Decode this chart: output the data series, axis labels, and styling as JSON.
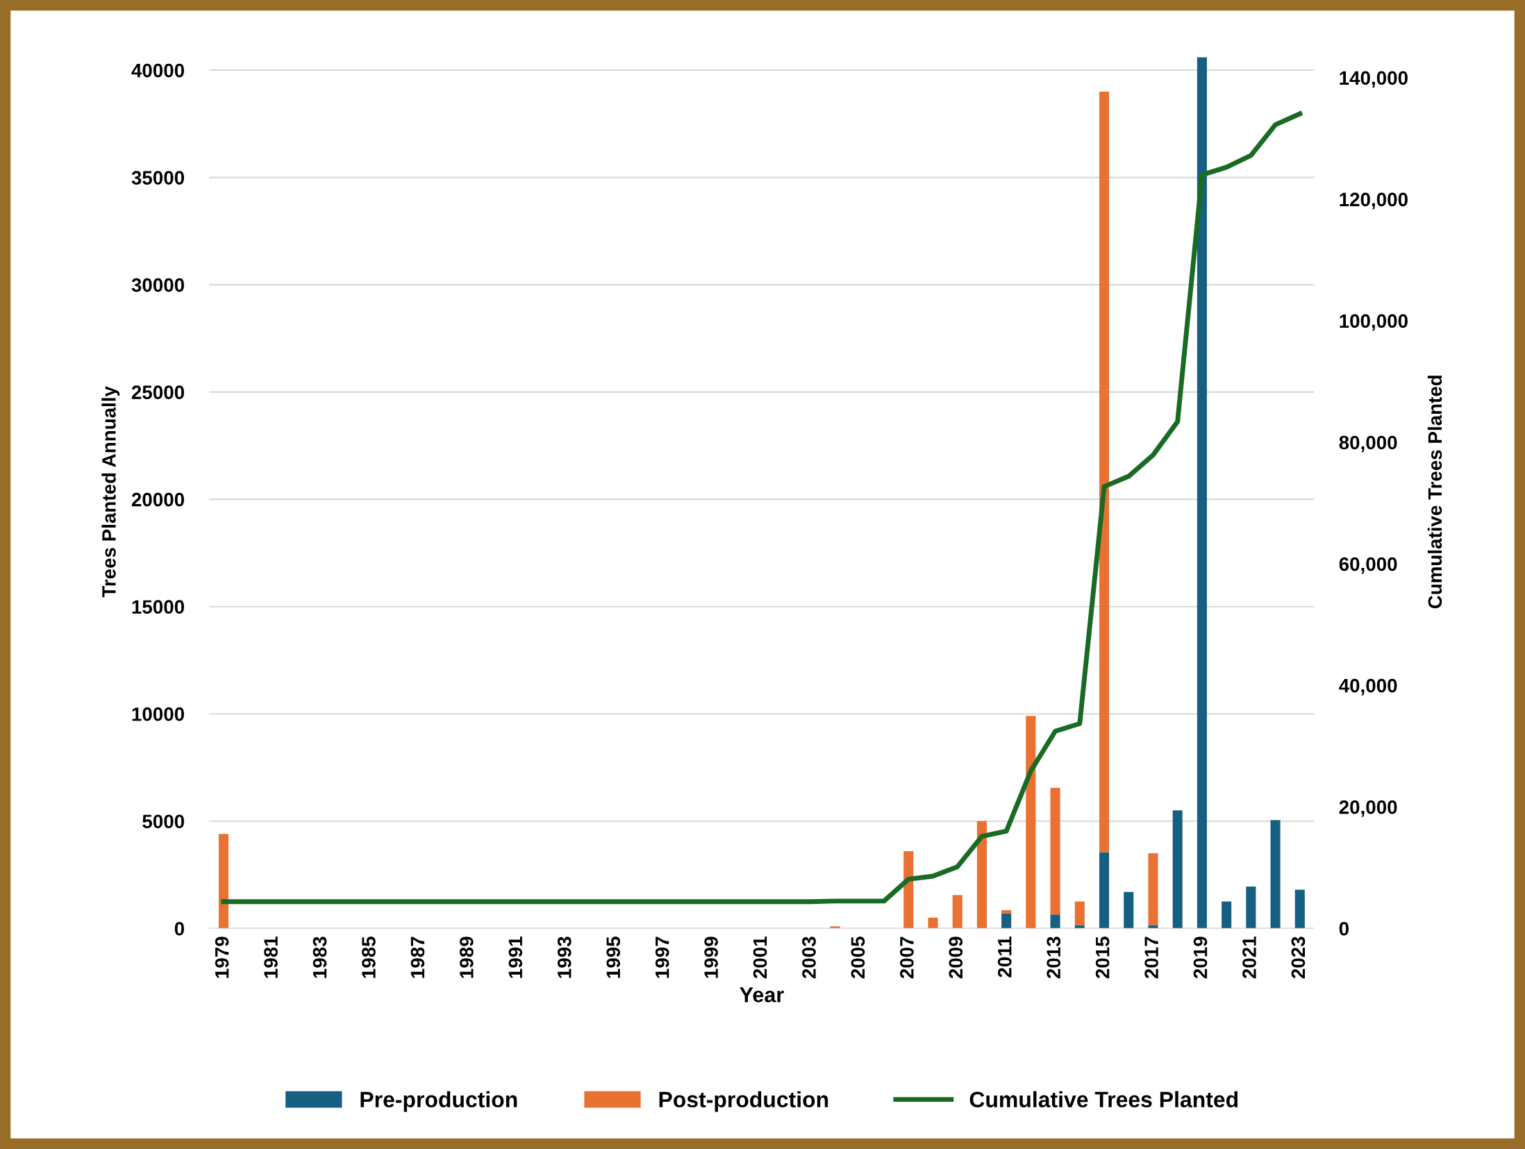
{
  "chart_data": {
    "type": "bar",
    "stacked": true,
    "xlabel": "Year",
    "ylabel": "Trees Planted Annually",
    "y2label": "Cumulative Trees Planted",
    "categories": [
      "1979",
      null,
      "1981",
      null,
      "1983",
      null,
      "1985",
      null,
      "1987",
      null,
      "1989",
      null,
      "1991",
      null,
      "1993",
      null,
      "1995",
      null,
      "1997",
      null,
      "1999",
      null,
      "2001",
      null,
      "2003",
      null,
      "2005",
      null,
      "2007",
      null,
      "2009",
      null,
      "2011",
      null,
      "2013",
      null,
      "2015",
      null,
      "2017",
      null,
      "2019",
      null,
      "2021",
      null,
      "2023"
    ],
    "series": [
      {
        "name": "Pre-production",
        "color": "#156082",
        "values": [
          0,
          0,
          0,
          0,
          0,
          0,
          0,
          0,
          0,
          0,
          0,
          0,
          0,
          0,
          0,
          0,
          0,
          0,
          0,
          0,
          0,
          0,
          0,
          0,
          0,
          0,
          0,
          0,
          0,
          0,
          0,
          0,
          700,
          0,
          650,
          150,
          3550,
          1700,
          150,
          5500,
          40600,
          1250,
          1950,
          5050,
          1800
        ]
      },
      {
        "name": "Post-production",
        "color": "#e97132",
        "values": [
          4400,
          0,
          0,
          0,
          0,
          0,
          0,
          0,
          0,
          0,
          0,
          0,
          0,
          0,
          0,
          0,
          0,
          0,
          0,
          0,
          0,
          0,
          0,
          0,
          0,
          100,
          0,
          0,
          3600,
          500,
          1550,
          5000,
          150,
          9900,
          5900,
          1100,
          35450,
          0,
          3350,
          0,
          0,
          0,
          0,
          0,
          0
        ]
      },
      {
        "name": "Cumulative Trees Planted",
        "type": "line",
        "axis": "y2",
        "color": "#196b24",
        "values": [
          4400,
          4400,
          4400,
          4400,
          4400,
          4400,
          4400,
          4400,
          4400,
          4400,
          4400,
          4400,
          4400,
          4400,
          4400,
          4400,
          4400,
          4400,
          4400,
          4400,
          4400,
          4400,
          4400,
          4400,
          4400,
          4500,
          4500,
          4500,
          8100,
          8600,
          10150,
          15150,
          16000,
          25900,
          32450,
          33700,
          72700,
          74400,
          77900,
          83400,
          124000,
          125250,
          127200,
          132250,
          134050
        ]
      }
    ],
    "ylim": [
      0,
      40700
    ],
    "yticks": [
      0,
      5000,
      10000,
      15000,
      20000,
      25000,
      30000,
      35000,
      40000
    ],
    "y2lim": [
      0,
      143700
    ],
    "y2ticks": [
      0,
      {
        "value": 20000,
        "label": "20,000"
      },
      {
        "value": 40000,
        "label": "40,000"
      },
      {
        "value": 60000,
        "label": "60,000"
      },
      {
        "value": 80000,
        "label": "80,000"
      },
      {
        "value": 100000,
        "label": "100,000"
      },
      {
        "value": 120000,
        "label": "120,000"
      },
      {
        "value": 140000,
        "label": "140,000"
      }
    ],
    "grid": "y",
    "legend": "bottom",
    "marker": "none",
    "line_style": "solid"
  }
}
